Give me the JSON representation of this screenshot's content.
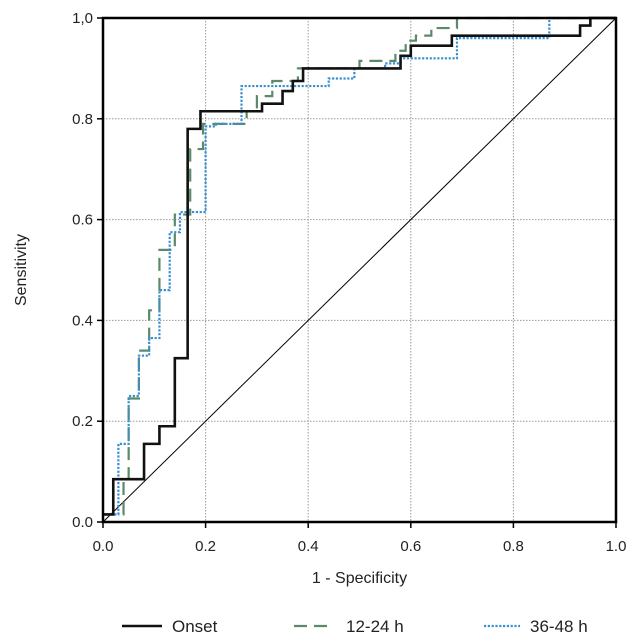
{
  "chart_data": {
    "type": "line",
    "title": "",
    "xlabel": "1 - Specificity",
    "ylabel": "Sensitivity",
    "xlim": [
      0,
      1
    ],
    "ylim": [
      0,
      1
    ],
    "x_ticks": [
      {
        "value": 0,
        "label": "0.0"
      },
      {
        "value": 0.2,
        "label": "0.2"
      },
      {
        "value": 0.4,
        "label": "0.4"
      },
      {
        "value": 0.6,
        "label": "0.6"
      },
      {
        "value": 0.8,
        "label": "0.8"
      },
      {
        "value": 1,
        "label": "1.0"
      }
    ],
    "y_ticks": [
      {
        "value": 0,
        "label": "0.0"
      },
      {
        "value": 0.2,
        "label": "0.2"
      },
      {
        "value": 0.4,
        "label": "0.4"
      },
      {
        "value": 0.6,
        "label": "0.6"
      },
      {
        "value": 0.8,
        "label": "0.8"
      },
      {
        "value": 1,
        "label": "1,0"
      }
    ],
    "grid": true,
    "legend_position": "bottom",
    "reference_line": {
      "x": [
        0,
        1
      ],
      "y": [
        0,
        1
      ],
      "color": "#000000"
    },
    "series": [
      {
        "name": "Onset",
        "color": "#111111",
        "style": "solid",
        "x": [
          0,
          0.02,
          0.02,
          0.08,
          0.08,
          0.11,
          0.11,
          0.14,
          0.14,
          0.165,
          0.165,
          0.19,
          0.19,
          0.31,
          0.31,
          0.35,
          0.35,
          0.37,
          0.37,
          0.39,
          0.39,
          0.58,
          0.58,
          0.6,
          0.6,
          0.68,
          0.68,
          0.93,
          0.93,
          0.95,
          0.95,
          1
        ],
        "y": [
          0.015,
          0.015,
          0.085,
          0.085,
          0.155,
          0.155,
          0.19,
          0.19,
          0.325,
          0.325,
          0.78,
          0.78,
          0.815,
          0.815,
          0.83,
          0.83,
          0.855,
          0.855,
          0.875,
          0.875,
          0.9,
          0.9,
          0.925,
          0.925,
          0.945,
          0.945,
          0.965,
          0.965,
          0.985,
          0.985,
          1,
          1
        ]
      },
      {
        "name": "12-24 h",
        "color": "#5a8a6a",
        "style": "dashed",
        "x": [
          0,
          0.04,
          0.04,
          0.05,
          0.05,
          0.07,
          0.07,
          0.09,
          0.09,
          0.11,
          0.11,
          0.14,
          0.14,
          0.17,
          0.17,
          0.195,
          0.195,
          0.28,
          0.28,
          0.3,
          0.3,
          0.33,
          0.33,
          0.38,
          0.38,
          0.5,
          0.5,
          0.57,
          0.57,
          0.59,
          0.59,
          0.61,
          0.61,
          0.64,
          0.64,
          0.69,
          0.69,
          0.71,
          0.71,
          1
        ],
        "y": [
          0.015,
          0.015,
          0.085,
          0.085,
          0.245,
          0.245,
          0.34,
          0.34,
          0.42,
          0.42,
          0.54,
          0.54,
          0.61,
          0.61,
          0.74,
          0.74,
          0.79,
          0.79,
          0.815,
          0.815,
          0.845,
          0.845,
          0.875,
          0.875,
          0.9,
          0.9,
          0.915,
          0.915,
          0.935,
          0.935,
          0.955,
          0.955,
          0.965,
          0.965,
          0.98,
          0.98,
          1,
          1,
          1,
          1
        ]
      },
      {
        "name": "36-48 h",
        "color": "#3a8fd0",
        "style": "dotted",
        "x": [
          0,
          0.03,
          0.03,
          0.05,
          0.05,
          0.07,
          0.07,
          0.09,
          0.09,
          0.11,
          0.11,
          0.13,
          0.13,
          0.15,
          0.15,
          0.2,
          0.2,
          0.22,
          0.22,
          0.27,
          0.27,
          0.32,
          0.32,
          0.36,
          0.36,
          0.44,
          0.44,
          0.49,
          0.49,
          0.55,
          0.55,
          0.58,
          0.58,
          0.69,
          0.69,
          0.76,
          0.76,
          0.87,
          0.87,
          1
        ],
        "y": [
          0.015,
          0.015,
          0.155,
          0.155,
          0.25,
          0.25,
          0.33,
          0.33,
          0.365,
          0.365,
          0.46,
          0.46,
          0.575,
          0.575,
          0.615,
          0.615,
          0.785,
          0.785,
          0.79,
          0.79,
          0.865,
          0.865,
          0.865,
          0.865,
          0.865,
          0.865,
          0.88,
          0.88,
          0.9,
          0.9,
          0.91,
          0.91,
          0.92,
          0.92,
          0.96,
          0.96,
          0.96,
          0.96,
          1,
          1
        ]
      }
    ]
  }
}
